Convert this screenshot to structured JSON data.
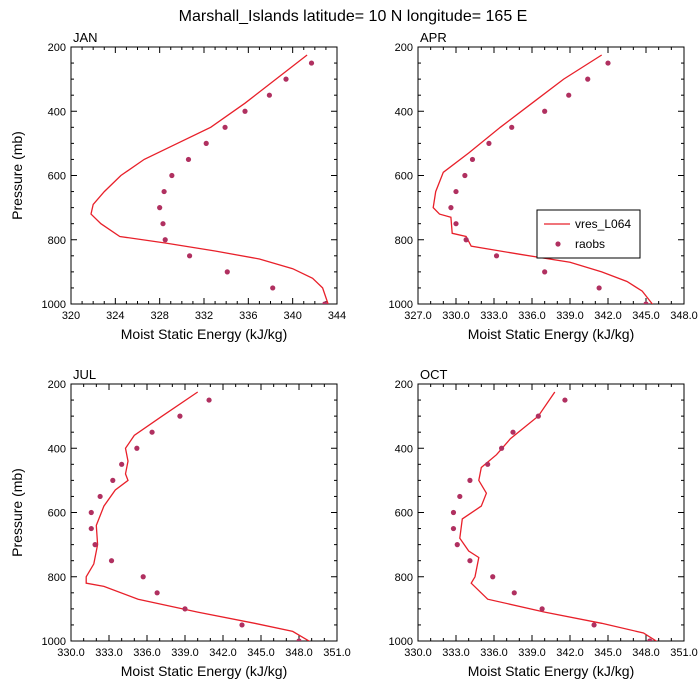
{
  "figure_title": "Marshall_Islands  latitude= 10 N longitude= 165 E",
  "legend": {
    "model": "vres_L064",
    "obs": "raobs"
  },
  "colors": {
    "model": "#e8202a",
    "obs": "#b03060"
  },
  "chart_data": [
    {
      "type": "line",
      "title": "JAN",
      "xlabel": "Moist Static Energy (kJ/kg)",
      "ylabel": "Pressure (mb)",
      "xlim": [
        320,
        344
      ],
      "ylim": [
        1000,
        200
      ],
      "yscale": "linear-inverted",
      "x_ticks": [
        320,
        324,
        328,
        332,
        336,
        340,
        344
      ],
      "x_tick_labels": [
        "320",
        "324",
        "328",
        "332",
        "336",
        "340",
        "344"
      ],
      "y_ticks": [
        200,
        400,
        600,
        800,
        1000
      ],
      "y_tick_labels": [
        "200",
        "400",
        "600",
        "800",
        "1000"
      ],
      "series": [
        {
          "name": "vres_L064",
          "kind": "line",
          "points": [
            [
              341.3,
              225
            ],
            [
              338.5,
              300
            ],
            [
              335.7,
              375
            ],
            [
              332.6,
              450
            ],
            [
              329.0,
              510
            ],
            [
              326.6,
              550
            ],
            [
              324.5,
              600
            ],
            [
              323.0,
              650
            ],
            [
              322.0,
              690
            ],
            [
              321.8,
              720
            ],
            [
              322.7,
              750
            ],
            [
              324.4,
              790
            ],
            [
              328.5,
              810
            ],
            [
              333.0,
              835
            ],
            [
              337.0,
              860
            ],
            [
              340.0,
              890
            ],
            [
              341.8,
              920
            ],
            [
              342.7,
              950
            ],
            [
              343.2,
              1000
            ]
          ]
        },
        {
          "name": "raobs",
          "kind": "scatter",
          "points": [
            [
              341.7,
              250
            ],
            [
              339.4,
              300
            ],
            [
              337.9,
              350
            ],
            [
              335.7,
              400
            ],
            [
              333.9,
              450
            ],
            [
              332.2,
              500
            ],
            [
              330.6,
              550
            ],
            [
              329.1,
              600
            ],
            [
              328.4,
              650
            ],
            [
              328.0,
              700
            ],
            [
              328.3,
              750
            ],
            [
              328.5,
              800
            ],
            [
              330.7,
              850
            ],
            [
              334.1,
              900
            ],
            [
              338.2,
              950
            ],
            [
              342.9,
              1000
            ]
          ]
        }
      ]
    },
    {
      "type": "line",
      "title": "APR",
      "xlabel": "Moist Static Energy (kJ/kg)",
      "ylabel": "",
      "xlim": [
        327,
        348
      ],
      "ylim": [
        1000,
        200
      ],
      "yscale": "linear-inverted",
      "x_ticks": [
        327,
        330,
        333,
        336,
        339,
        342,
        345,
        348
      ],
      "x_tick_labels": [
        "327.0",
        "330.0",
        "333.0",
        "336.0",
        "339.0",
        "342.0",
        "345.0",
        "348.0"
      ],
      "y_ticks": [
        200,
        400,
        600,
        800,
        1000
      ],
      "y_tick_labels": [
        "200",
        "400",
        "600",
        "800",
        "1000"
      ],
      "series": [
        {
          "name": "vres_L064",
          "kind": "line",
          "points": [
            [
              341.5,
              225
            ],
            [
              338.5,
              300
            ],
            [
              336.0,
              375
            ],
            [
              333.5,
              450
            ],
            [
              331.0,
              530
            ],
            [
              329.0,
              590
            ],
            [
              328.4,
              650
            ],
            [
              328.2,
              700
            ],
            [
              328.7,
              720
            ],
            [
              329.6,
              730
            ],
            [
              329.7,
              780
            ],
            [
              330.8,
              790
            ],
            [
              331.2,
              820
            ],
            [
              335.0,
              845
            ],
            [
              339.0,
              870
            ],
            [
              341.5,
              900
            ],
            [
              343.5,
              930
            ],
            [
              344.7,
              960
            ],
            [
              345.6,
              1005
            ]
          ]
        },
        {
          "name": "raobs",
          "kind": "scatter",
          "points": [
            [
              342.0,
              250
            ],
            [
              340.4,
              300
            ],
            [
              338.9,
              350
            ],
            [
              337.0,
              400
            ],
            [
              334.4,
              450
            ],
            [
              332.6,
              500
            ],
            [
              331.3,
              550
            ],
            [
              330.7,
              600
            ],
            [
              330.0,
              650
            ],
            [
              329.6,
              700
            ],
            [
              330.0,
              750
            ],
            [
              330.8,
              800
            ],
            [
              333.2,
              850
            ],
            [
              337.0,
              900
            ],
            [
              341.3,
              950
            ],
            [
              345.0,
              1000
            ]
          ]
        }
      ]
    },
    {
      "type": "line",
      "title": "JUL",
      "xlabel": "Moist Static Energy (kJ/kg)",
      "ylabel": "Pressure (mb)",
      "xlim": [
        330,
        351
      ],
      "ylim": [
        1000,
        200
      ],
      "yscale": "linear-inverted",
      "x_ticks": [
        330,
        333,
        336,
        339,
        342,
        345,
        348,
        351
      ],
      "x_tick_labels": [
        "330.0",
        "333.0",
        "336.0",
        "339.0",
        "342.0",
        "345.0",
        "348.0",
        "351.0"
      ],
      "y_ticks": [
        200,
        400,
        600,
        800,
        1000
      ],
      "y_tick_labels": [
        "200",
        "400",
        "600",
        "800",
        "1000"
      ],
      "series": [
        {
          "name": "vres_L064",
          "kind": "line",
          "points": [
            [
              340.0,
              225
            ],
            [
              337.2,
              300
            ],
            [
              335.0,
              360
            ],
            [
              334.3,
              400
            ],
            [
              334.5,
              440
            ],
            [
              334.3,
              480
            ],
            [
              334.5,
              500
            ],
            [
              333.5,
              530
            ],
            [
              332.6,
              580
            ],
            [
              332.0,
              640
            ],
            [
              332.1,
              700
            ],
            [
              331.8,
              760
            ],
            [
              331.2,
              800
            ],
            [
              331.2,
              820
            ],
            [
              332.6,
              830
            ],
            [
              335.3,
              870
            ],
            [
              340.0,
              910
            ],
            [
              344.5,
              945
            ],
            [
              347.5,
              970
            ],
            [
              349.0,
              1005
            ]
          ]
        },
        {
          "name": "raobs",
          "kind": "scatter",
          "points": [
            [
              340.9,
              250
            ],
            [
              338.6,
              300
            ],
            [
              336.4,
              350
            ],
            [
              335.2,
              400
            ],
            [
              334.0,
              450
            ],
            [
              333.3,
              500
            ],
            [
              332.3,
              550
            ],
            [
              331.6,
              600
            ],
            [
              331.6,
              650
            ],
            [
              331.9,
              700
            ],
            [
              333.2,
              750
            ],
            [
              335.7,
              800
            ],
            [
              336.8,
              850
            ],
            [
              339.0,
              900
            ],
            [
              343.5,
              950
            ],
            [
              348.0,
              1000
            ]
          ]
        }
      ]
    },
    {
      "type": "line",
      "title": "OCT",
      "xlabel": "Moist Static Energy (kJ/kg)",
      "ylabel": "",
      "xlim": [
        330,
        351
      ],
      "ylim": [
        1000,
        200
      ],
      "yscale": "linear-inverted",
      "x_ticks": [
        330,
        333,
        336,
        339,
        342,
        345,
        348,
        351
      ],
      "x_tick_labels": [
        "330.0",
        "333.0",
        "336.0",
        "339.0",
        "342.0",
        "345.0",
        "348.0",
        "351.0"
      ],
      "y_ticks": [
        200,
        400,
        600,
        800,
        1000
      ],
      "y_tick_labels": [
        "200",
        "400",
        "600",
        "800",
        "1000"
      ],
      "series": [
        {
          "name": "vres_L064",
          "kind": "line",
          "points": [
            [
              340.8,
              225
            ],
            [
              339.5,
              300
            ],
            [
              337.3,
              370
            ],
            [
              336.2,
              420
            ],
            [
              335.0,
              460
            ],
            [
              334.8,
              500
            ],
            [
              335.4,
              540
            ],
            [
              335.0,
              580
            ],
            [
              333.5,
              620
            ],
            [
              333.3,
              680
            ],
            [
              334.0,
              720
            ],
            [
              334.8,
              740
            ],
            [
              334.5,
              800
            ],
            [
              334.2,
              820
            ],
            [
              335.5,
              870
            ],
            [
              340.0,
              910
            ],
            [
              344.5,
              945
            ],
            [
              347.8,
              975
            ],
            [
              349.0,
              1005
            ]
          ]
        },
        {
          "name": "raobs",
          "kind": "scatter",
          "points": [
            [
              341.6,
              250
            ],
            [
              339.5,
              300
            ],
            [
              337.5,
              350
            ],
            [
              336.6,
              400
            ],
            [
              335.5,
              450
            ],
            [
              334.1,
              500
            ],
            [
              333.3,
              550
            ],
            [
              332.8,
              600
            ],
            [
              332.8,
              650
            ],
            [
              333.1,
              700
            ],
            [
              334.1,
              750
            ],
            [
              335.9,
              800
            ],
            [
              337.6,
              850
            ],
            [
              339.8,
              900
            ],
            [
              343.9,
              950
            ],
            [
              348.3,
              1000
            ]
          ]
        }
      ]
    }
  ]
}
